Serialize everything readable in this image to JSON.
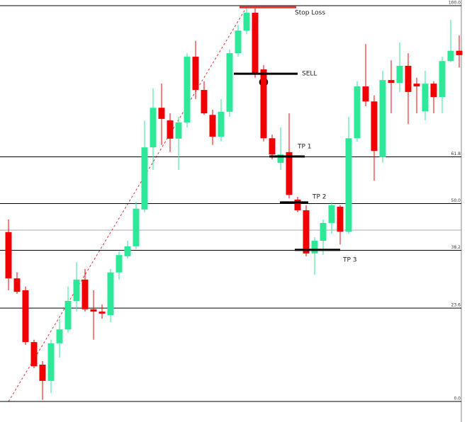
{
  "chart_data": {
    "type": "candlestick",
    "ylim": [
      0,
      100
    ],
    "yticks": [
      {
        "value": 0,
        "label": "0.0"
      },
      23.6,
      38.2,
      {
        "value": 50,
        "label": "50.0"
      },
      61.8,
      {
        "value": 100,
        "label": "100.0"
      }
    ],
    "up_color": "#2ee89a",
    "down_color": "#f00000",
    "open": [
      42.8,
      31.1,
      28.1,
      15.0,
      9.3,
      5.2,
      14.7,
      18.2,
      25.4,
      30.8,
      23.3,
      22.7,
      21.8,
      32.6,
      36.7,
      39.2,
      48.5,
      64.2,
      74.2,
      71.0,
      66.4,
      70.5,
      87.1,
      78.7,
      72.4,
      66.9,
      73.2,
      88.0,
      93.7,
      98.2,
      83.9,
      66.5,
      60.3,
      63.0,
      51.0,
      48.3,
      37.4,
      40.6,
      45.1,
      49.2,
      42.9,
      66.5,
      79.6,
      75.8,
      61.7,
      81.2,
      80.5,
      84.8,
      80.3,
      73.3,
      80.3,
      76.9,
      86.0,
      88.6
    ],
    "high": [
      46.0,
      32.6,
      29.0,
      15.6,
      10.2,
      15.6,
      20.9,
      29.0,
      35.2,
      33.5,
      28.1,
      24.5,
      33.5,
      37.9,
      40.6,
      50.4,
      71.0,
      79.1,
      80.3,
      72.8,
      71.9,
      88.0,
      91.1,
      80.9,
      73.7,
      76.4,
      88.9,
      95.2,
      99.3,
      100,
      85.0,
      67.4,
      69.2,
      72.8,
      51.7,
      49.6,
      41.5,
      46.0,
      50.4,
      49.6,
      71.9,
      80.9,
      90.3,
      77.3,
      83.5,
      86.2,
      90.7,
      88.0,
      81.8,
      83.5,
      80.9,
      87.1,
      96.4,
      92.5
    ],
    "low": [
      28.1,
      27.2,
      14.3,
      8.4,
      0.4,
      2.1,
      11.1,
      17.4,
      22.7,
      22.7,
      15.6,
      20.9,
      20.0,
      30.8,
      36.1,
      38.5,
      47.8,
      58.5,
      64.8,
      63.0,
      58.5,
      69.2,
      76.4,
      72.4,
      64.8,
      65.7,
      71.9,
      87.1,
      92.8,
      81.8,
      65.7,
      61.2,
      58.5,
      51.3,
      47.8,
      36.7,
      32.0,
      37.0,
      42.4,
      39.7,
      42.4,
      65.7,
      74.6,
      55.8,
      60.3,
      72.8,
      78.2,
      70.1,
      72.8,
      71.0,
      72.8,
      72.8,
      85.7,
      84.4
    ],
    "close": [
      31.1,
      27.7,
      15.0,
      8.9,
      5.2,
      14.7,
      18.2,
      25.4,
      30.8,
      23.3,
      22.7,
      22.2,
      32.6,
      37.0,
      39.2,
      48.7,
      64.2,
      74.2,
      71.4,
      66.4,
      70.5,
      87.1,
      78.7,
      72.8,
      66.9,
      73.2,
      88.0,
      93.7,
      98.2,
      82.6,
      66.5,
      62.4,
      62.4,
      52.2,
      48.3,
      37.4,
      40.6,
      45.1,
      49.6,
      42.9,
      66.5,
      79.6,
      75.8,
      63.3,
      81.2,
      80.5,
      84.8,
      78.2,
      79.6,
      80.3,
      76.9,
      86.0,
      88.6,
      87.5
    ],
    "annotations": [
      {
        "label": "Stop Loss",
        "value": 99.6,
        "color": "#f03030"
      },
      {
        "label": "SELL",
        "value": 82.8,
        "color": "#000000"
      },
      {
        "label": "TP 1",
        "value": 61.9,
        "color": "#000000"
      },
      {
        "label": "TP 2",
        "value": 50.3,
        "color": "#000000"
      },
      {
        "label": "TP 3",
        "value": 38.3,
        "color": "#000000"
      }
    ]
  }
}
